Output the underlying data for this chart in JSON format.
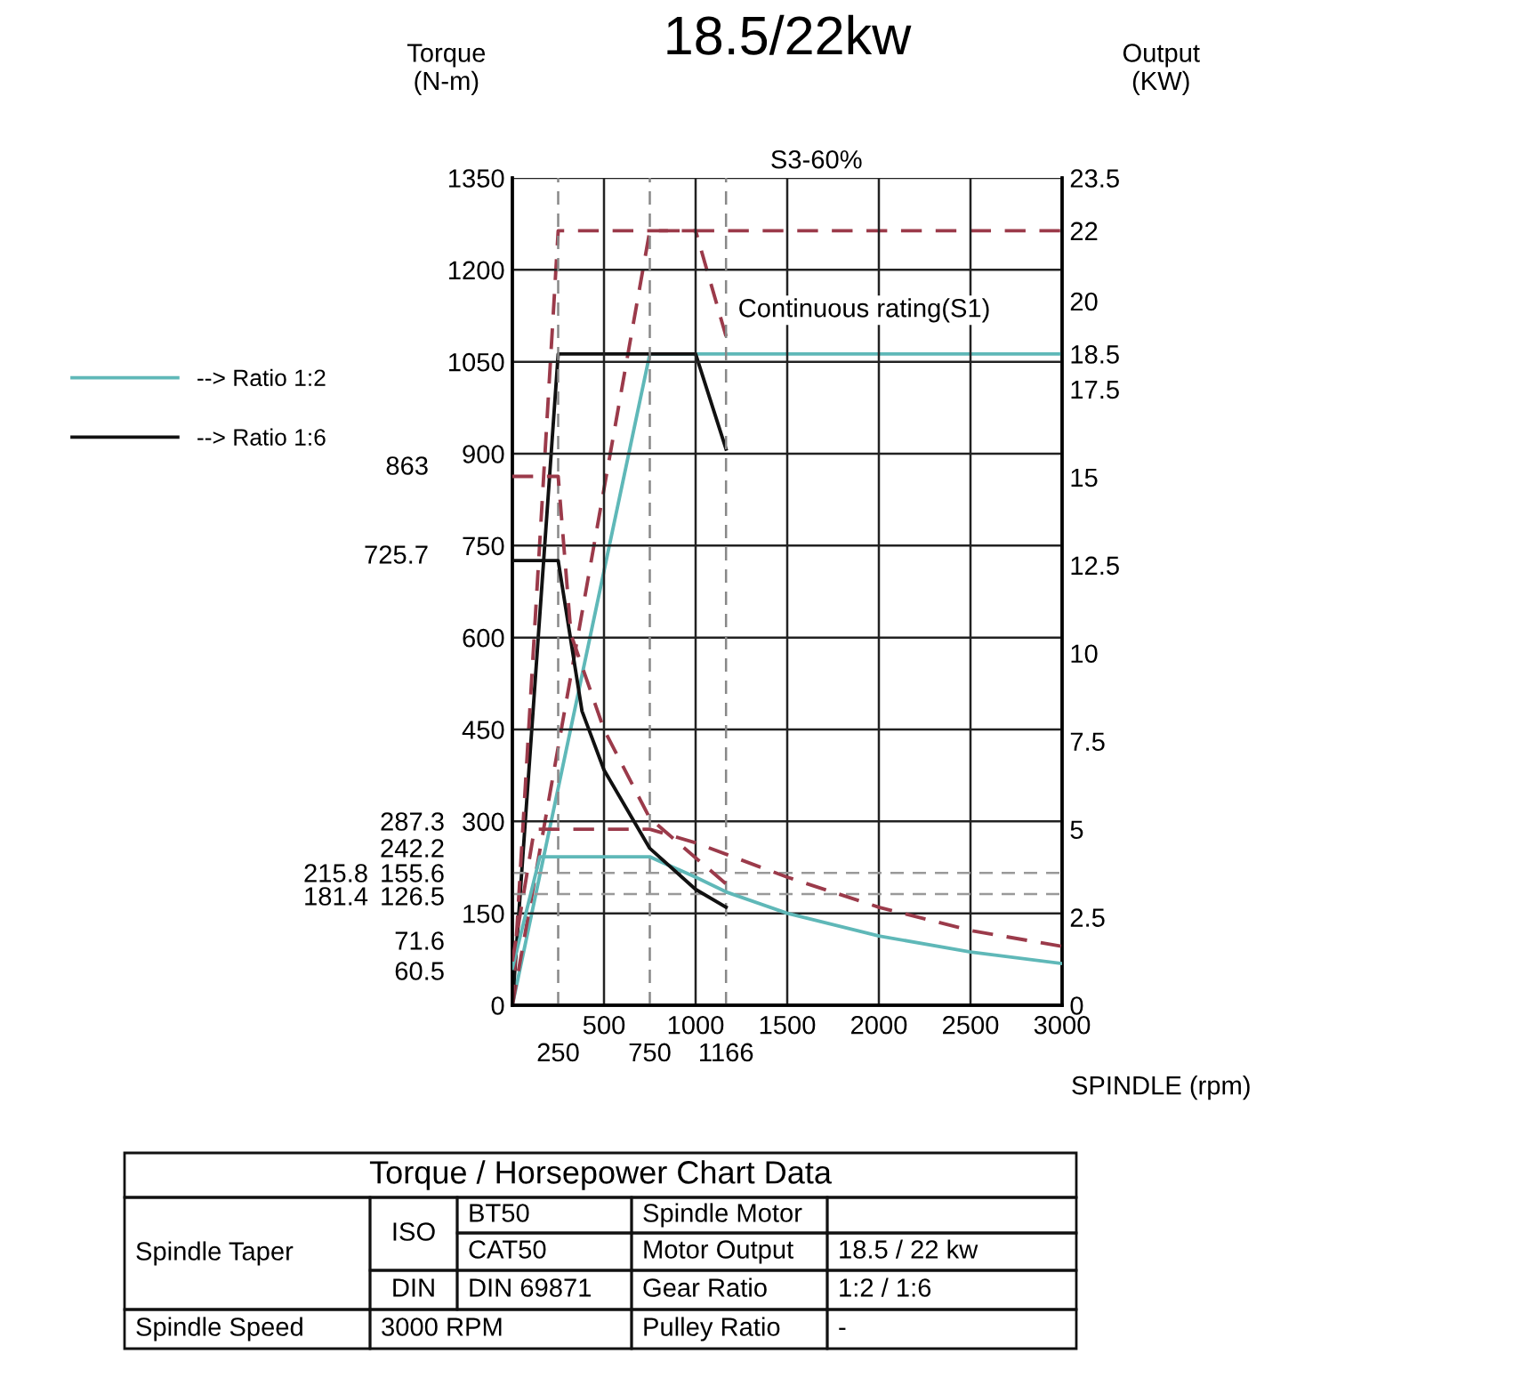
{
  "chart_data": {
    "type": "line",
    "title": "18.5/22kw",
    "xlabel": "SPINDLE (rpm)",
    "ylabel": "Torque\n(N-m)",
    "y2label": "Output\n(KW)",
    "xlim": [
      0,
      3000
    ],
    "xticks": [
      500,
      1000,
      1500,
      2000,
      2500,
      3000
    ],
    "ylim": [
      0,
      1350
    ],
    "yticks": [
      0,
      150,
      300,
      450,
      600,
      750,
      900,
      1050,
      1200,
      1350
    ],
    "y2lim": [
      0,
      23.5
    ],
    "y2ticks": [
      0,
      2.5,
      5,
      7.5,
      10,
      12.5,
      15,
      17.5,
      18.5,
      20,
      22,
      23.5
    ],
    "grid": true,
    "legend": "left",
    "series": [
      {
        "name": "--> Ratio 1:2",
        "color": "#5fb8b8",
        "line_style": "solid",
        "x": [
          0,
          150,
          750,
          1000,
          1166,
          1500,
          2000,
          2500,
          3000
        ],
        "values": [
          60.5,
          242.2,
          242.2,
          209,
          185,
          150,
          113,
          87,
          68
        ]
      },
      {
        "color": "#5fb8b8",
        "line_style": "solid",
        "axis": "y2",
        "x": [
          0,
          750,
          3000
        ],
        "values": [
          0,
          18.5,
          18.5
        ]
      },
      {
        "color": "#9b3a4a",
        "line_style": "dashed",
        "x": [
          0,
          120,
          750,
          1000,
          1500,
          2000,
          2500,
          3000
        ],
        "values": [
          71.6,
          287.3,
          287.3,
          265,
          209,
          160,
          122,
          96
        ]
      },
      {
        "color": "#9b3a4a",
        "line_style": "dashed",
        "axis": "y2",
        "x": [
          0,
          750,
          3000
        ],
        "values": [
          0,
          22,
          22
        ]
      },
      {
        "name": "--> Ratio 1:6",
        "color": "#111111",
        "line_style": "solid",
        "x": [
          0,
          250,
          380,
          500,
          750,
          1000,
          1166
        ],
        "values": [
          725.7,
          725.7,
          480,
          384,
          256,
          189,
          160
        ]
      },
      {
        "color": "#111111",
        "line_style": "solid",
        "axis": "y2",
        "x": [
          0,
          250,
          1000,
          1166
        ],
        "values": [
          0,
          18.5,
          18.5,
          15.8
        ]
      },
      {
        "color": "#9b3a4a",
        "line_style": "dashed",
        "x": [
          0,
          250,
          320,
          500,
          750,
          1166
        ],
        "values": [
          863,
          863,
          605,
          450,
          305,
          198
        ]
      },
      {
        "color": "#9b3a4a",
        "line_style": "dashed",
        "axis": "y2",
        "x": [
          0,
          250,
          1000,
          1166
        ],
        "values": [
          0,
          22,
          22,
          19
        ]
      }
    ],
    "ref_lines": [
      {
        "axis": "x",
        "value": 250,
        "label": "250",
        "color": "#888888",
        "line_style": "dashed"
      },
      {
        "axis": "x",
        "value": 750,
        "label": "750",
        "color": "#888888",
        "line_style": "dashed"
      },
      {
        "axis": "x",
        "value": 1166,
        "label": "1166",
        "color": "#888888",
        "line_style": "dashed"
      },
      {
        "axis": "y",
        "value": 215.8,
        "color": "#999999",
        "line_style": "dashed"
      },
      {
        "axis": "y",
        "value": 181.4,
        "color": "#999999",
        "line_style": "dashed"
      }
    ],
    "annotations": [
      "S3-60%",
      "Continuous rating(S1)",
      "863",
      "725.7",
      "287.3",
      "242.2",
      "215.8",
      "181.4",
      "155.6",
      "126.5",
      "71.6",
      "60.5",
      "Torque / Horsepower Chart Data",
      "Spindle Taper",
      "ISO",
      "BT50",
      "Spindle Motor",
      "CAT50",
      "Motor Output",
      "18.5 / 22 kw",
      "DIN",
      "DIN 69871",
      "Gear Ratio",
      "1:2 / 1:6",
      "Spindle Speed",
      "3000 RPM",
      "Pulley Ratio",
      "-"
    ]
  }
}
